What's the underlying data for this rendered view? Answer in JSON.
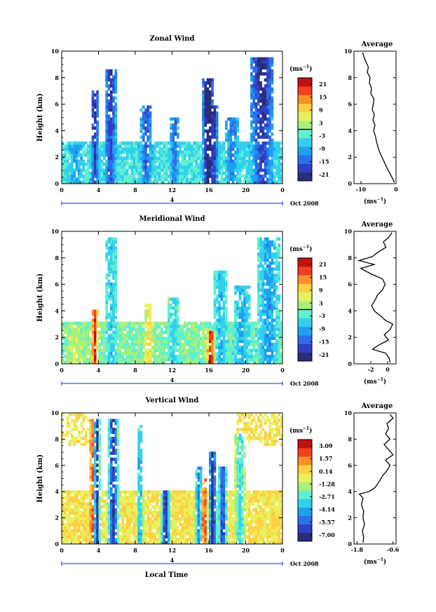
{
  "figure": {
    "x_axis_label": "Local Time",
    "date_label": "Oct 2008",
    "day_marker": "4",
    "profile_title": "Average"
  },
  "colors": {
    "scale": [
      "#2b2d7a",
      "#2f3fc4",
      "#2d6fe8",
      "#1ea0f0",
      "#33d0ee",
      "#5ff0d0",
      "#a8f07a",
      "#e8f060",
      "#ffd040",
      "#ff9028",
      "#f04020",
      "#c01010"
    ],
    "missing": "#ffffff"
  },
  "chart_data": [
    {
      "type": "heatmap",
      "title": "Zonal Wind",
      "ylabel": "Height (km)",
      "x_ticks": [
        "0",
        "4",
        "8",
        "12",
        "16",
        "20",
        "0"
      ],
      "xlim": [
        0,
        24
      ],
      "ylim": [
        0,
        10
      ],
      "y_ticks": [
        "0",
        "2",
        "4",
        "6",
        "8",
        "10"
      ],
      "colorbar": {
        "unit": "(ms",
        "unit_exp": "−1",
        "unit_close": ")",
        "labels": [
          "21",
          "15",
          "9",
          "3",
          "-3",
          "-9",
          "-15",
          "-21"
        ],
        "range": [
          -24,
          24
        ],
        "contour_level": 0
      },
      "profile": {
        "xlim": [
          -12,
          0
        ],
        "x_ticks": [
          "-10",
          "0"
        ],
        "xlabel": "(ms",
        "xlabel_exp": "−1",
        "xlabel_close": ")",
        "heights": [
          0.1,
          0.4,
          0.8,
          1.2,
          1.6,
          2.0,
          2.4,
          2.8,
          3.2,
          3.6,
          4.0,
          4.4,
          4.8,
          5.2,
          5.6,
          6.0,
          6.4,
          6.8,
          7.2,
          7.6,
          8.0,
          8.4,
          8.8,
          9.2,
          9.6,
          9.9
        ],
        "values": [
          -0.5,
          -1.0,
          -1.8,
          -2.6,
          -3.3,
          -4.0,
          -4.7,
          -5.2,
          -5.6,
          -5.9,
          -6.4,
          -6.0,
          -6.6,
          -6.2,
          -6.8,
          -6.5,
          -6.3,
          -7.2,
          -7.0,
          -7.6,
          -7.4,
          -8.2,
          -7.9,
          -8.6,
          -9.2,
          -9.5
        ]
      }
    },
    {
      "type": "heatmap",
      "title": "Meridional Wind",
      "ylabel": "Height (km)",
      "x_ticks": [
        "0",
        "4",
        "8",
        "12",
        "16",
        "20",
        "0"
      ],
      "xlim": [
        0,
        24
      ],
      "ylim": [
        0,
        10
      ],
      "y_ticks": [
        "0",
        "2",
        "4",
        "6",
        "8",
        "10"
      ],
      "colorbar": {
        "unit": "(ms",
        "unit_exp": "−1",
        "unit_close": ")",
        "labels": [
          "21",
          "15",
          "9",
          "3",
          "-3",
          "-9",
          "-15",
          "-21"
        ],
        "range": [
          -24,
          24
        ],
        "contour_level": 0
      },
      "profile": {
        "xlim": [
          -4,
          1
        ],
        "x_ticks": [
          "-2",
          "0"
        ],
        "xlabel": "(ms",
        "xlabel_exp": "−1",
        "xlabel_close": ")",
        "heights": [
          0.1,
          0.4,
          0.8,
          1.1,
          1.4,
          1.8,
          2.2,
          2.6,
          3.0,
          3.3,
          3.6,
          4.0,
          4.4,
          4.8,
          5.2,
          5.6,
          6.0,
          6.4,
          6.8,
          7.2,
          7.5,
          7.8,
          8.1,
          8.4,
          8.8,
          9.2,
          9.6,
          9.9
        ],
        "values": [
          0.3,
          0.2,
          -0.2,
          -1.8,
          -1.1,
          0.1,
          -0.4,
          0.3,
          0.6,
          -0.3,
          -0.8,
          -1.6,
          -1.9,
          -1.5,
          -1.2,
          -0.6,
          -0.3,
          -0.6,
          -2.0,
          -3.2,
          -1.6,
          -3.4,
          -1.8,
          -1.2,
          -0.2,
          -0.5,
          0.2,
          0.5
        ]
      }
    },
    {
      "type": "heatmap",
      "title": "Vertical Wind",
      "ylabel": "Height (km)",
      "x_ticks": [
        "0",
        "4",
        "8",
        "12",
        "16",
        "20",
        "0"
      ],
      "xlim": [
        0,
        24
      ],
      "ylim": [
        0,
        10
      ],
      "y_ticks": [
        "0",
        "2",
        "4",
        "6",
        "8",
        "10"
      ],
      "colorbar": {
        "unit": "(ms",
        "unit_exp": "−1",
        "unit_close": ")",
        "labels": [
          "3.09",
          "1.57",
          "0.14",
          "-1.28",
          "-2.71",
          "-4.14",
          "-5.57",
          "-7.00"
        ],
        "range": [
          -8.0,
          3.6
        ]
      },
      "profile": {
        "xlim": [
          -1.9,
          -0.5
        ],
        "x_ticks": [
          "-1.8",
          "-0.6"
        ],
        "xlabel": "(ms",
        "xlabel_exp": "−1",
        "xlabel_close": ")",
        "heights": [
          0.1,
          0.5,
          1.0,
          1.5,
          2.0,
          2.5,
          3.0,
          3.5,
          3.8,
          4.0,
          4.3,
          4.8,
          5.2,
          5.6,
          6.0,
          6.4,
          6.8,
          7.2,
          7.6,
          8.0,
          8.4,
          8.8,
          9.2,
          9.6,
          9.9
        ],
        "values": [
          -1.6,
          -1.58,
          -1.62,
          -1.55,
          -1.6,
          -1.58,
          -1.65,
          -1.6,
          -1.72,
          -1.4,
          -1.2,
          -1.05,
          -0.95,
          -0.8,
          -0.7,
          -0.85,
          -0.6,
          -0.75,
          -0.9,
          -0.7,
          -0.85,
          -0.75,
          -0.8,
          -0.6,
          -0.7
        ]
      }
    }
  ]
}
